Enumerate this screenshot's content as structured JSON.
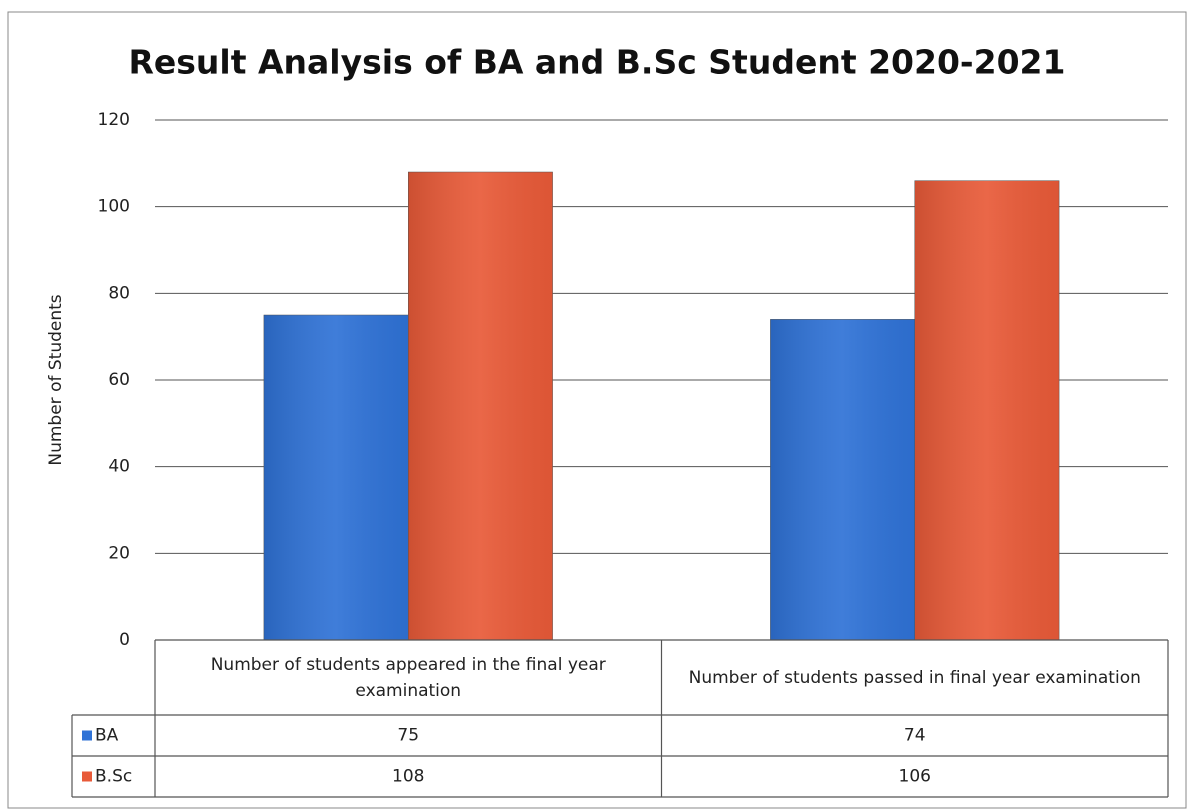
{
  "chart_data": {
    "type": "bar",
    "title": "Result Analysis of BA and B.Sc Student 2020-2021",
    "y_label": "Number of Students",
    "categories": [
      "Number of students appeared in the final year examination",
      "Number of students passed in final year examination"
    ],
    "series": [
      {
        "name": "BA",
        "color": "#2f72d6",
        "values": [
          75,
          74
        ]
      },
      {
        "name": "B.Sc",
        "color": "#e85a38",
        "values": [
          108,
          106
        ]
      }
    ],
    "ylim": [
      0,
      120
    ],
    "yticks": [
      0,
      20,
      40,
      60,
      80,
      100,
      120
    ],
    "grid": true,
    "data_table": true
  }
}
